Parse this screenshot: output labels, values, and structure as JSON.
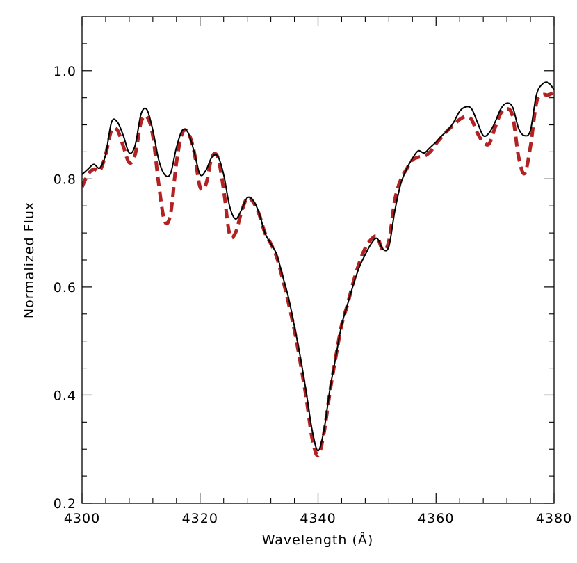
{
  "chart_data": {
    "type": "line",
    "title": "",
    "xlabel": "Wavelength (Å)",
    "ylabel": "Normalized Flux",
    "xlim": [
      4300,
      4380
    ],
    "ylim": [
      0.2,
      1.1
    ],
    "x_ticks": [
      4300,
      4320,
      4340,
      4360,
      4380
    ],
    "x_tick_labels": [
      "4300",
      "4320",
      "4340",
      "4360",
      "4380"
    ],
    "y_ticks": [
      0.2,
      0.4,
      0.6,
      0.8,
      1.0
    ],
    "y_tick_labels": [
      "0.2",
      "0.4",
      "0.6",
      "0.8",
      "1.0"
    ],
    "grid": false,
    "series": [
      {
        "color": "#000000",
        "style": "solid",
        "points": [
          [
            4300,
            0.808
          ],
          [
            4301,
            0.818
          ],
          [
            4302,
            0.827
          ],
          [
            4303,
            0.82
          ],
          [
            4304,
            0.845
          ],
          [
            4305,
            0.905
          ],
          [
            4306,
            0.905
          ],
          [
            4307,
            0.88
          ],
          [
            4308,
            0.848
          ],
          [
            4309,
            0.862
          ],
          [
            4310,
            0.92
          ],
          [
            4311,
            0.928
          ],
          [
            4312,
            0.89
          ],
          [
            4313,
            0.835
          ],
          [
            4314,
            0.808
          ],
          [
            4315,
            0.81
          ],
          [
            4316,
            0.858
          ],
          [
            4317,
            0.89
          ],
          [
            4318,
            0.885
          ],
          [
            4319,
            0.85
          ],
          [
            4320,
            0.808
          ],
          [
            4321,
            0.816
          ],
          [
            4322,
            0.84
          ],
          [
            4323,
            0.842
          ],
          [
            4324,
            0.808
          ],
          [
            4325,
            0.75
          ],
          [
            4326,
            0.726
          ],
          [
            4327,
            0.742
          ],
          [
            4328,
            0.765
          ],
          [
            4329,
            0.76
          ],
          [
            4330,
            0.737
          ],
          [
            4331,
            0.7
          ],
          [
            4332,
            0.68
          ],
          [
            4333,
            0.66
          ],
          [
            4334,
            0.62
          ],
          [
            4335,
            0.58
          ],
          [
            4336,
            0.527
          ],
          [
            4337,
            0.47
          ],
          [
            4338,
            0.405
          ],
          [
            4339,
            0.335
          ],
          [
            4340,
            0.297
          ],
          [
            4341,
            0.335
          ],
          [
            4342,
            0.41
          ],
          [
            4343,
            0.47
          ],
          [
            4344,
            0.53
          ],
          [
            4345,
            0.568
          ],
          [
            4346,
            0.605
          ],
          [
            4347,
            0.637
          ],
          [
            4348,
            0.66
          ],
          [
            4349,
            0.68
          ],
          [
            4350,
            0.69
          ],
          [
            4351,
            0.67
          ],
          [
            4352,
            0.675
          ],
          [
            4353,
            0.74
          ],
          [
            4354,
            0.79
          ],
          [
            4355,
            0.818
          ],
          [
            4356,
            0.838
          ],
          [
            4357,
            0.852
          ],
          [
            4358,
            0.848
          ],
          [
            4359,
            0.858
          ],
          [
            4360,
            0.868
          ],
          [
            4361,
            0.88
          ],
          [
            4362,
            0.89
          ],
          [
            4363,
            0.905
          ],
          [
            4364,
            0.925
          ],
          [
            4365,
            0.933
          ],
          [
            4366,
            0.93
          ],
          [
            4367,
            0.905
          ],
          [
            4368,
            0.88
          ],
          [
            4369,
            0.885
          ],
          [
            4370,
            0.905
          ],
          [
            4371,
            0.93
          ],
          [
            4372,
            0.94
          ],
          [
            4373,
            0.932
          ],
          [
            4374,
            0.893
          ],
          [
            4375,
            0.88
          ],
          [
            4376,
            0.89
          ],
          [
            4377,
            0.955
          ],
          [
            4378,
            0.975
          ],
          [
            4379,
            0.978
          ],
          [
            4380,
            0.965
          ]
        ]
      },
      {
        "color": "#b22222",
        "style": "dashed",
        "points": [
          [
            4300,
            0.785
          ],
          [
            4301,
            0.808
          ],
          [
            4302,
            0.818
          ],
          [
            4303,
            0.815
          ],
          [
            4304,
            0.845
          ],
          [
            4305,
            0.89
          ],
          [
            4306,
            0.89
          ],
          [
            4307,
            0.86
          ],
          [
            4308,
            0.83
          ],
          [
            4309,
            0.845
          ],
          [
            4310,
            0.905
          ],
          [
            4311,
            0.915
          ],
          [
            4312,
            0.88
          ],
          [
            4313,
            0.79
          ],
          [
            4314,
            0.722
          ],
          [
            4315,
            0.735
          ],
          [
            4316,
            0.83
          ],
          [
            4317,
            0.885
          ],
          [
            4318,
            0.885
          ],
          [
            4319,
            0.85
          ],
          [
            4320,
            0.785
          ],
          [
            4321,
            0.79
          ],
          [
            4322,
            0.84
          ],
          [
            4323,
            0.84
          ],
          [
            4324,
            0.78
          ],
          [
            4325,
            0.698
          ],
          [
            4326,
            0.7
          ],
          [
            4327,
            0.738
          ],
          [
            4328,
            0.765
          ],
          [
            4329,
            0.757
          ],
          [
            4330,
            0.735
          ],
          [
            4331,
            0.7
          ],
          [
            4332,
            0.68
          ],
          [
            4333,
            0.655
          ],
          [
            4334,
            0.615
          ],
          [
            4335,
            0.57
          ],
          [
            4336,
            0.52
          ],
          [
            4337,
            0.46
          ],
          [
            4338,
            0.395
          ],
          [
            4339,
            0.32
          ],
          [
            4340,
            0.288
          ],
          [
            4341,
            0.33
          ],
          [
            4342,
            0.405
          ],
          [
            4343,
            0.47
          ],
          [
            4344,
            0.53
          ],
          [
            4345,
            0.568
          ],
          [
            4346,
            0.61
          ],
          [
            4347,
            0.645
          ],
          [
            4348,
            0.672
          ],
          [
            4349,
            0.688
          ],
          [
            4350,
            0.693
          ],
          [
            4351,
            0.668
          ],
          [
            4352,
            0.685
          ],
          [
            4353,
            0.76
          ],
          [
            4354,
            0.798
          ],
          [
            4355,
            0.818
          ],
          [
            4356,
            0.835
          ],
          [
            4357,
            0.84
          ],
          [
            4358,
            0.842
          ],
          [
            4359,
            0.85
          ],
          [
            4360,
            0.865
          ],
          [
            4361,
            0.878
          ],
          [
            4362,
            0.89
          ],
          [
            4363,
            0.9
          ],
          [
            4364,
            0.91
          ],
          [
            4365,
            0.915
          ],
          [
            4366,
            0.91
          ],
          [
            4367,
            0.885
          ],
          [
            4368,
            0.868
          ],
          [
            4369,
            0.865
          ],
          [
            4370,
            0.895
          ],
          [
            4371,
            0.922
          ],
          [
            4372,
            0.93
          ],
          [
            4373,
            0.915
          ],
          [
            4374,
            0.84
          ],
          [
            4375,
            0.81
          ],
          [
            4376,
            0.86
          ],
          [
            4377,
            0.94
          ],
          [
            4378,
            0.955
          ],
          [
            4379,
            0.955
          ],
          [
            4380,
            0.96
          ]
        ]
      }
    ]
  }
}
